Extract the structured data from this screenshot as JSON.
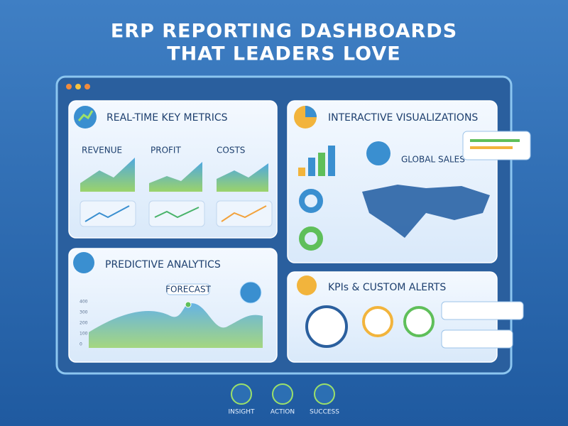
{
  "header": {
    "title_line1": "ERP REPORTING DASHBOARDS",
    "title_line2": "THAT LEADERS LOVE"
  },
  "panels": {
    "metrics": {
      "title": "REAL-TIME KEY METRICS",
      "items": [
        "REVENUE",
        "PROFIT",
        "COSTS"
      ]
    },
    "visualizations": {
      "title": "INTERACTIVE VISUALIZATIONS",
      "map_label": "GLOBAL SALES"
    },
    "predictive": {
      "title": "PREDICTIVE ANALYTICS",
      "callout": "FORECAST",
      "axis_labels": [
        "400",
        "300",
        "200",
        "100",
        "0"
      ]
    },
    "alerts": {
      "title": "KPIs & CUSTOM ALERTS"
    }
  },
  "footer": {
    "items": [
      "INSIGHT",
      "ACTION",
      "SUCCESS"
    ]
  }
}
